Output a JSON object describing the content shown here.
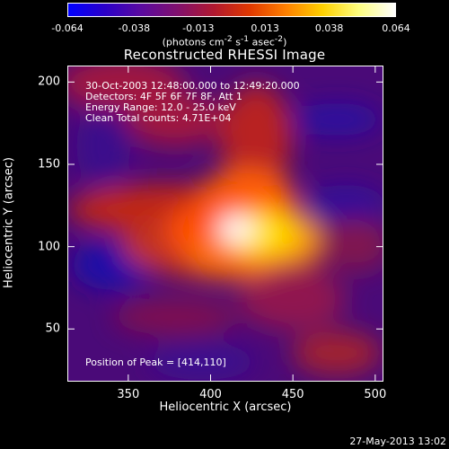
{
  "colorbar": {
    "tick_labels": [
      "-0.064",
      "-0.038",
      "-0.013",
      "0.013",
      "0.038",
      "0.064"
    ],
    "tick_values": [
      -0.064,
      -0.038,
      -0.013,
      0.013,
      0.038,
      0.064
    ],
    "range": [
      -0.064,
      0.064
    ],
    "units_prefix": "(photons cm",
    "units_exp1": "-2",
    "units_mid": " s",
    "units_exp2": "-1",
    "units_mid2": " asec",
    "units_exp3": "-2",
    "units_suffix": ")",
    "colors": [
      "#0000ff",
      "#2a00c8",
      "#5a0aa0",
      "#80106e",
      "#b01830",
      "#e03800",
      "#ff8000",
      "#ffd000",
      "#ffff80",
      "#ffffff"
    ]
  },
  "title": "Reconstructed RHESSI Image",
  "annotations": {
    "line1": "30-Oct-2003 12:48:00.000 to 12:49:20.000",
    "line2": "Detectors: 4F 5F 6F 7F 8F, Att 1",
    "line3": "Energy Range: 12.0 - 25.0 keV",
    "line4": "Clean    Total counts: 4.71E+04",
    "peak": "Position of Peak = [414,110]"
  },
  "axes": {
    "xlabel": "Heliocentric X (arcsec)",
    "ylabel": "Heliocentric Y (arcsec)",
    "xlim": [
      313,
      505
    ],
    "ylim": [
      18,
      210
    ],
    "xticks": [
      350,
      400,
      450,
      500
    ],
    "xtick_labels": [
      "350",
      "400",
      "450",
      "500"
    ],
    "yticks": [
      50,
      100,
      150,
      200
    ],
    "ytick_labels": [
      "50",
      "100",
      "150",
      "200"
    ]
  },
  "peak_position": [
    414,
    110
  ],
  "timestamp": "27-May-2013 13:02"
}
